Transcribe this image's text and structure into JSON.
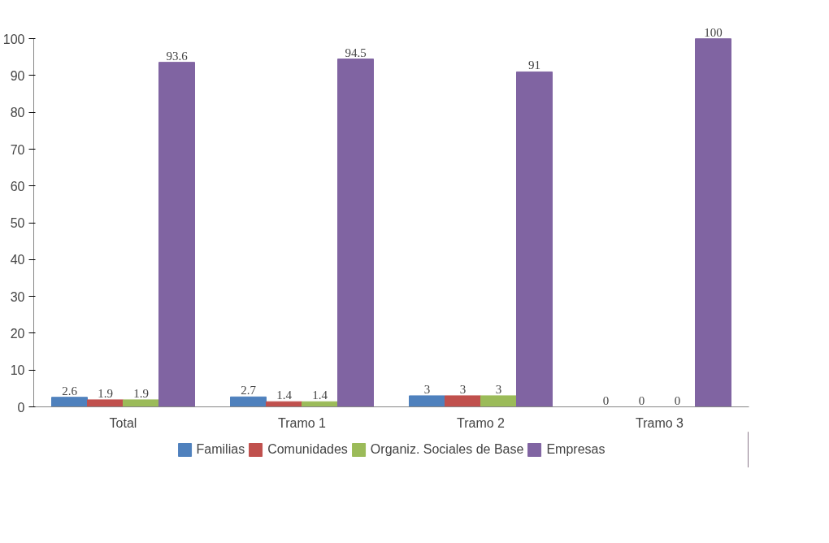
{
  "chart_data": {
    "type": "bar",
    "categories": [
      "Total",
      "Tramo 1",
      "Tramo 2",
      "Tramo 3"
    ],
    "series": [
      {
        "name": "Familias",
        "color": "#4f81bd",
        "values": [
          2.6,
          2.7,
          3,
          0
        ]
      },
      {
        "name": "Comunidades",
        "color": "#c0504d",
        "values": [
          1.9,
          1.4,
          3,
          0
        ]
      },
      {
        "name": "Organiz. Sociales de Base",
        "color": "#9bbb59",
        "values": [
          1.9,
          1.4,
          3,
          0
        ]
      },
      {
        "name": "Empresas",
        "color": "#8064a2",
        "values": [
          93.6,
          94.5,
          91,
          100
        ]
      }
    ],
    "ylim": [
      0,
      100
    ],
    "yticks": [
      0,
      10,
      20,
      30,
      40,
      50,
      60,
      70,
      80,
      90,
      100
    ],
    "data_labels": true,
    "grid": false,
    "legend": "bottom"
  }
}
